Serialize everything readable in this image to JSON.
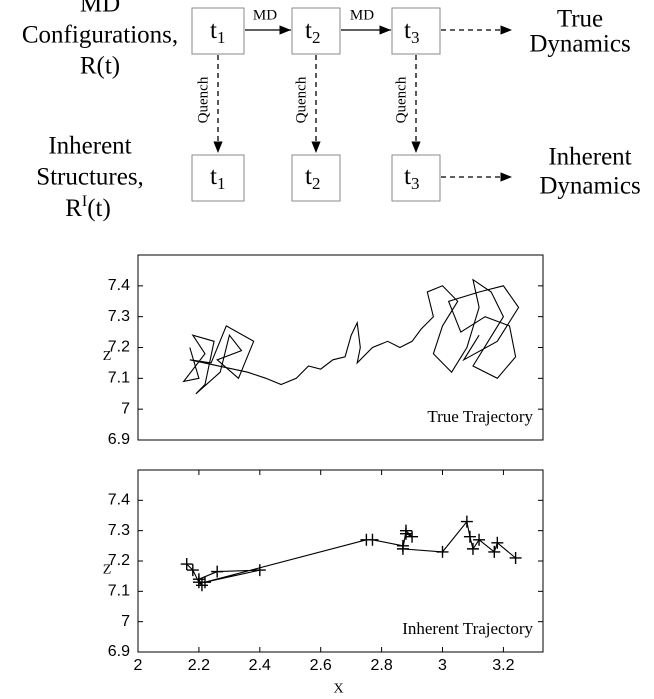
{
  "diagram": {
    "row1": {
      "label": [
        "MD",
        "Configurations,",
        "R(t)"
      ],
      "boxes": [
        {
          "base": "t",
          "sub": "1"
        },
        {
          "base": "t",
          "sub": "2"
        },
        {
          "base": "t",
          "sub": "3"
        }
      ],
      "arrow_labels": [
        "MD",
        "MD"
      ],
      "result": [
        "True",
        "Dynamics"
      ]
    },
    "quench": [
      "Quench",
      "Quench",
      "Quench"
    ],
    "row2": {
      "label": [
        "Inherent",
        "Structures,"
      ],
      "symbol": {
        "base": "R",
        "sup": "I",
        "rest": "(t)"
      },
      "boxes": [
        {
          "base": "t",
          "sub": "1"
        },
        {
          "base": "t",
          "sub": "2"
        },
        {
          "base": "t",
          "sub": "3"
        }
      ],
      "result": [
        "Inherent",
        "Dynamics"
      ]
    }
  },
  "chart_data": [
    {
      "type": "line",
      "annotation": "True Trajectory",
      "ylabel": "z",
      "color": "#000000",
      "xlim": [
        2,
        3.33
      ],
      "ylim": [
        6.9,
        7.5
      ],
      "yticks": [
        6.9,
        7,
        7.1,
        7.2,
        7.3,
        7.4
      ],
      "x": [
        2.17,
        2.2,
        2.15,
        2.22,
        2.18,
        2.25,
        2.22,
        2.19,
        2.27,
        2.3,
        2.34,
        2.26,
        2.33,
        2.38,
        2.29,
        2.24,
        2.17,
        2.36,
        2.42,
        2.47,
        2.52,
        2.56,
        2.6,
        2.64,
        2.68,
        2.7,
        2.72,
        2.73,
        2.72,
        2.77,
        2.82,
        2.86,
        2.9,
        2.93,
        2.97,
        2.95,
        3.0,
        3.05,
        3.0,
        2.97,
        3.03,
        3.08,
        3.12,
        3.1,
        3.16,
        3.2,
        3.15,
        3.1,
        3.18,
        3.24,
        3.22,
        3.14,
        3.06,
        3.02,
        3.12,
        3.2,
        3.25,
        3.18,
        3.07,
        3.12
      ],
      "values": [
        7.2,
        7.1,
        7.09,
        7.18,
        7.24,
        7.22,
        7.08,
        7.05,
        7.12,
        7.24,
        7.19,
        7.16,
        7.1,
        7.22,
        7.27,
        7.15,
        7.16,
        7.12,
        7.1,
        7.08,
        7.1,
        7.14,
        7.13,
        7.16,
        7.17,
        7.24,
        7.28,
        7.2,
        7.15,
        7.2,
        7.22,
        7.2,
        7.22,
        7.26,
        7.3,
        7.38,
        7.4,
        7.35,
        7.27,
        7.18,
        7.12,
        7.2,
        7.33,
        7.42,
        7.38,
        7.3,
        7.22,
        7.14,
        7.1,
        7.17,
        7.27,
        7.3,
        7.25,
        7.35,
        7.38,
        7.4,
        7.33,
        7.22,
        7.16,
        7.24
      ]
    },
    {
      "type": "line",
      "marker": "+",
      "annotation": "Inherent Trajectory",
      "ylabel": "z",
      "xlabel": "x",
      "color": "#000000",
      "xlim": [
        2,
        3.33
      ],
      "ylim": [
        6.9,
        7.5
      ],
      "yticks": [
        6.9,
        7,
        7.1,
        7.2,
        7.3,
        7.4
      ],
      "xticks": [
        2,
        2.2,
        2.4,
        2.6,
        2.8,
        3,
        3.2
      ],
      "x": [
        2.16,
        2.18,
        2.2,
        2.21,
        2.2,
        2.26,
        2.4,
        2.22,
        2.75,
        2.77,
        2.87,
        2.88,
        2.9,
        2.88,
        2.87,
        3.0,
        3.08,
        3.09,
        3.1,
        3.12,
        3.17,
        3.18,
        3.24
      ],
      "values": [
        7.19,
        7.17,
        7.13,
        7.12,
        7.14,
        7.165,
        7.17,
        7.13,
        7.27,
        7.27,
        7.25,
        7.29,
        7.28,
        7.3,
        7.24,
        7.23,
        7.33,
        7.28,
        7.24,
        7.27,
        7.23,
        7.26,
        7.21
      ]
    }
  ]
}
